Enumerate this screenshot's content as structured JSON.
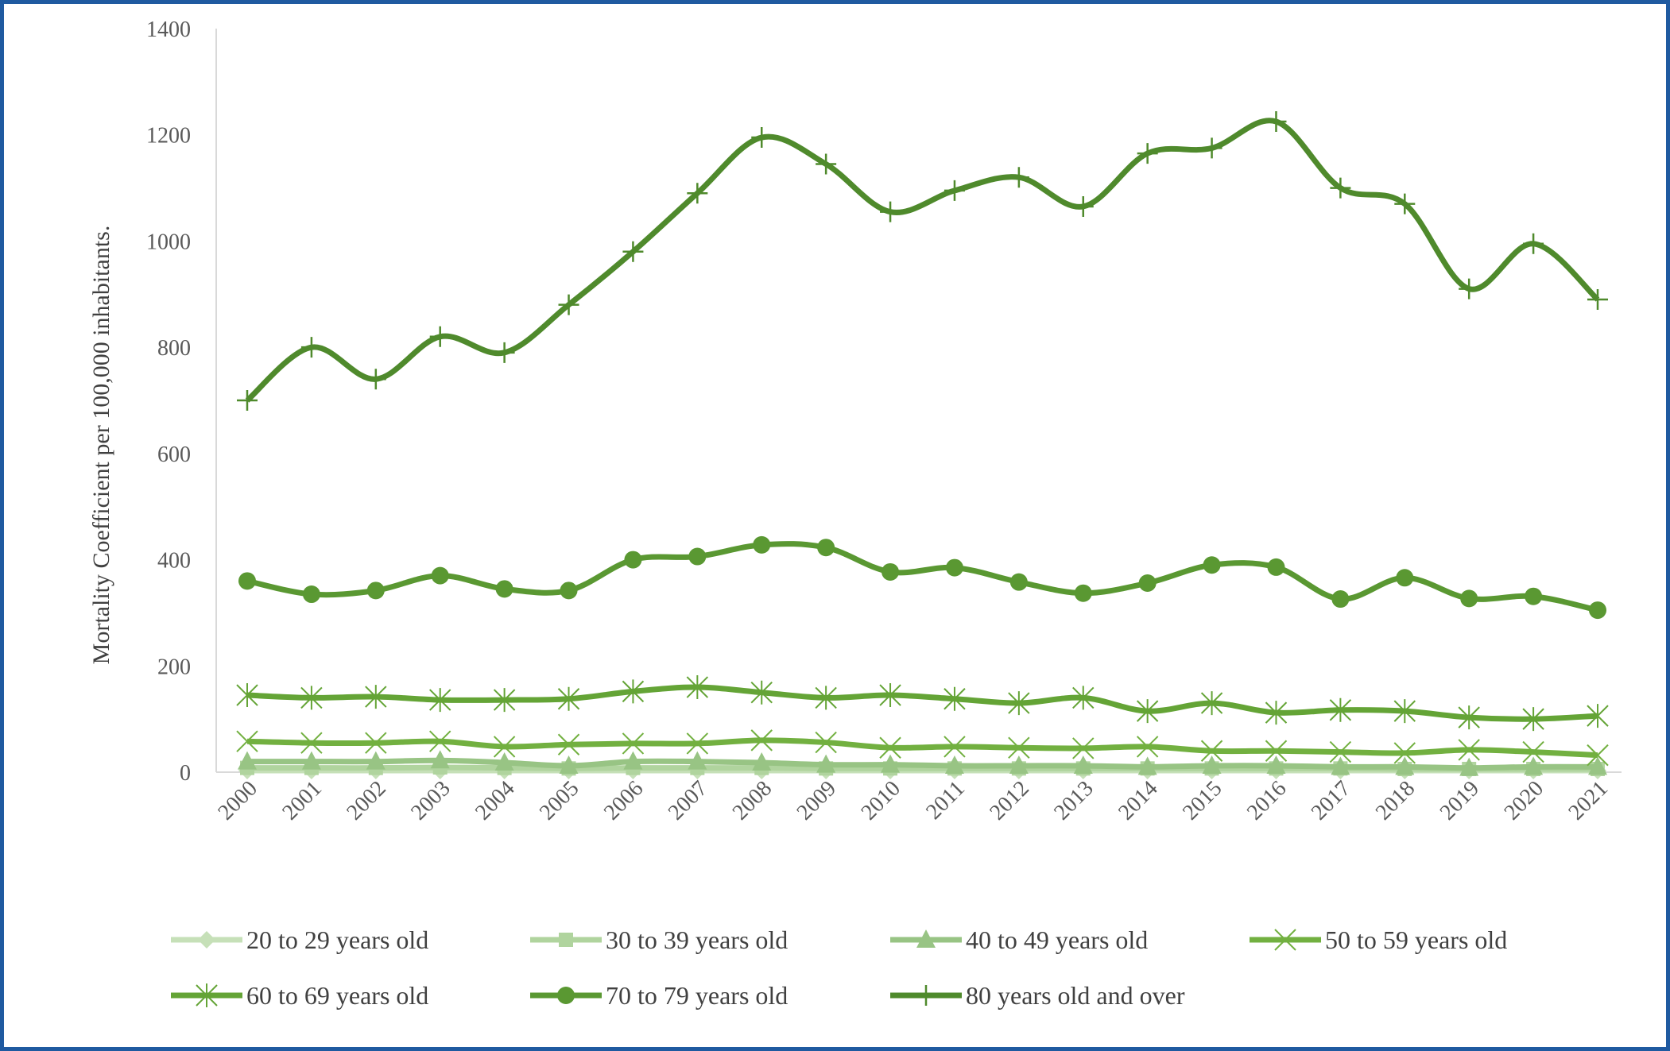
{
  "chart_data": {
    "type": "line",
    "title": "",
    "xlabel": "",
    "ylabel": "Mortality  Coefficient  per 100,000 inhabitants.",
    "ylim": [
      0,
      1400
    ],
    "yticks": [
      0,
      200,
      400,
      600,
      800,
      1000,
      1200,
      1400
    ],
    "grid": false,
    "legend_position": "bottom",
    "x": [
      "2000",
      "2001",
      "2002",
      "2003",
      "2004",
      "2005",
      "2006",
      "2007",
      "2008",
      "2009",
      "2010",
      "2011",
      "2012",
      "2013",
      "2014",
      "2015",
      "2016",
      "2017",
      "2018",
      "2019",
      "2020",
      "2021"
    ],
    "series": [
      {
        "name": "20 to 29 years old",
        "marker": "diamond",
        "color": "#c6e0b8",
        "values": [
          3,
          3,
          3,
          3,
          3,
          3,
          3,
          3,
          3,
          3,
          3,
          3,
          3,
          3,
          3,
          3,
          3,
          3,
          3,
          3,
          3,
          3
        ]
      },
      {
        "name": "30 to 39 years old",
        "marker": "square",
        "color": "#b0d49e",
        "values": [
          8,
          8,
          8,
          9,
          8,
          7,
          8,
          8,
          8,
          7,
          7,
          7,
          7,
          7,
          7,
          7,
          7,
          7,
          6,
          6,
          6,
          6
        ]
      },
      {
        "name": "40 to 49 years old",
        "marker": "triangle",
        "color": "#98c484",
        "values": [
          20,
          20,
          20,
          22,
          18,
          12,
          20,
          20,
          18,
          14,
          14,
          12,
          12,
          12,
          10,
          12,
          12,
          10,
          10,
          8,
          10,
          10
        ]
      },
      {
        "name": "50 to 59 years old",
        "marker": "x",
        "color": "#72b040",
        "values": [
          58,
          55,
          55,
          58,
          48,
          52,
          54,
          54,
          60,
          56,
          46,
          48,
          46,
          45,
          48,
          40,
          40,
          38,
          36,
          42,
          38,
          32
        ]
      },
      {
        "name": "60 to 69 years old",
        "marker": "asterisk",
        "color": "#64a436",
        "values": [
          145,
          140,
          142,
          136,
          136,
          138,
          152,
          160,
          150,
          140,
          145,
          138,
          130,
          140,
          115,
          130,
          112,
          117,
          115,
          103,
          100,
          106
        ]
      },
      {
        "name": "70 to 79 years old",
        "marker": "circle",
        "color": "#5a9832",
        "values": [
          360,
          335,
          342,
          370,
          345,
          342,
          400,
          406,
          428,
          423,
          377,
          385,
          358,
          337,
          356,
          390,
          386,
          326,
          366,
          327,
          331,
          305
        ]
      },
      {
        "name": "80 years old and over",
        "marker": "plus",
        "color": "#4f8a2c",
        "values": [
          700,
          800,
          740,
          820,
          790,
          880,
          980,
          1090,
          1195,
          1145,
          1055,
          1095,
          1120,
          1065,
          1165,
          1175,
          1225,
          1100,
          1070,
          910,
          995,
          890
        ]
      }
    ]
  }
}
